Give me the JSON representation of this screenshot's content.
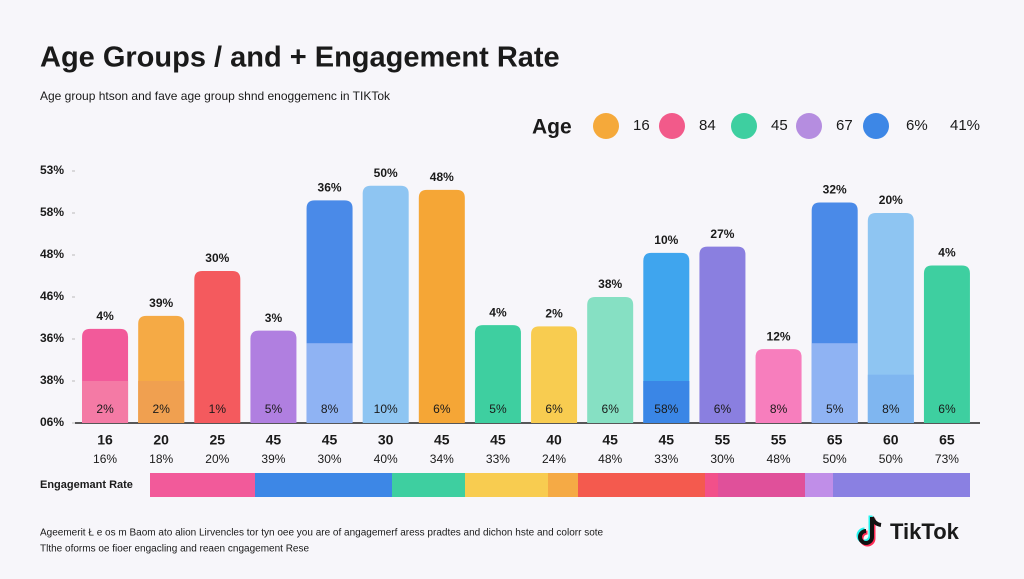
{
  "chart_data": {
    "type": "bar",
    "title": "Age Groups / and + Engagement Rate",
    "subtitle": "Age group htson and fave age group shnd enoggemenc in TIKTok",
    "legend_title": "Age",
    "legend": [
      {
        "name": "16",
        "color": "#f5a93a"
      },
      {
        "name": "84",
        "color": "#f25a8a"
      },
      {
        "name": "45",
        "color": "#3ecfa0"
      },
      {
        "name": "67",
        "color": "#b58de0"
      },
      {
        "name": "6%",
        "color": "#3d87e6"
      }
    ],
    "legend_extra": "41%",
    "categories": [
      "16",
      "20",
      "25",
      "45",
      "45",
      "30",
      "45",
      "45",
      "40",
      "45",
      "45",
      "55",
      "55",
      "65",
      "60",
      "65"
    ],
    "sublabels": [
      "16%",
      "18%",
      "20%",
      "39%",
      "30%",
      "40%",
      "34%",
      "33%",
      "24%",
      "48%",
      "33%",
      "30%",
      "48%",
      "50%",
      "50%",
      "73%"
    ],
    "values": [
      2.24,
      2.55,
      3.62,
      2.2,
      5.3,
      5.65,
      5.55,
      2.33,
      2.3,
      3.0,
      4.05,
      4.2,
      1.76,
      5.25,
      5.0,
      3.75
    ],
    "lower_values": [
      1.0,
      1.0,
      null,
      null,
      1.9,
      null,
      null,
      null,
      null,
      null,
      1.0,
      null,
      null,
      1.9,
      1.15,
      null
    ],
    "colors": [
      "#f25a9a",
      "#f5aa45",
      "#f45a5e",
      "#b07fe0",
      "#4a8ae8",
      "#8ec5f2",
      "#f5a636",
      "#3ecfa0",
      "#f8cc50",
      "#86e0c3",
      "#3fa5ee",
      "#8a7fe0",
      "#f77ebd",
      "#4a8ae8",
      "#8ec5f2",
      "#3ecfa0"
    ],
    "lower_colors": [
      "#f47aa5",
      "#f0a050",
      null,
      null,
      "#8fb3f3",
      null,
      null,
      null,
      null,
      null,
      "#3a86e6",
      null,
      null,
      "#8fb3f3",
      "#7fb6f0",
      null
    ],
    "top_labels": [
      "4%",
      "39%",
      "30%",
      "3%",
      "36%",
      "50%",
      "48%",
      "4%",
      "2%",
      "38%",
      "10%",
      "27%",
      "12%",
      "32%",
      "20%",
      "4%"
    ],
    "inner_labels": [
      "2%",
      "2%",
      "1%",
      "5%",
      "8%",
      "10%",
      "6%",
      "5%",
      "6%",
      "6%",
      "58%",
      "6%",
      "8%",
      "5%",
      "8%",
      "6%"
    ],
    "ylim": [
      0,
      6.2
    ],
    "yticks": [
      {
        "value": 0,
        "label": "06%"
      },
      {
        "value": 1,
        "label": "38%"
      },
      {
        "value": 2,
        "label": "36%"
      },
      {
        "value": 3,
        "label": "46%"
      },
      {
        "value": 4,
        "label": "48%"
      },
      {
        "value": 5,
        "label": "58%"
      },
      {
        "value": 6,
        "label": "53%"
      }
    ],
    "strip_label": "Engagemant Rate",
    "footnote": [
      "Ageemerit Ł e os m Baom ato alion Lirvencles tor tyn oee you are of angagemerf aress pradtes and dichon hste and colorr sote",
      "Tlthe oforms oe fioer engacling and reaen cngagement Rese"
    ],
    "brand": "TikTok"
  }
}
